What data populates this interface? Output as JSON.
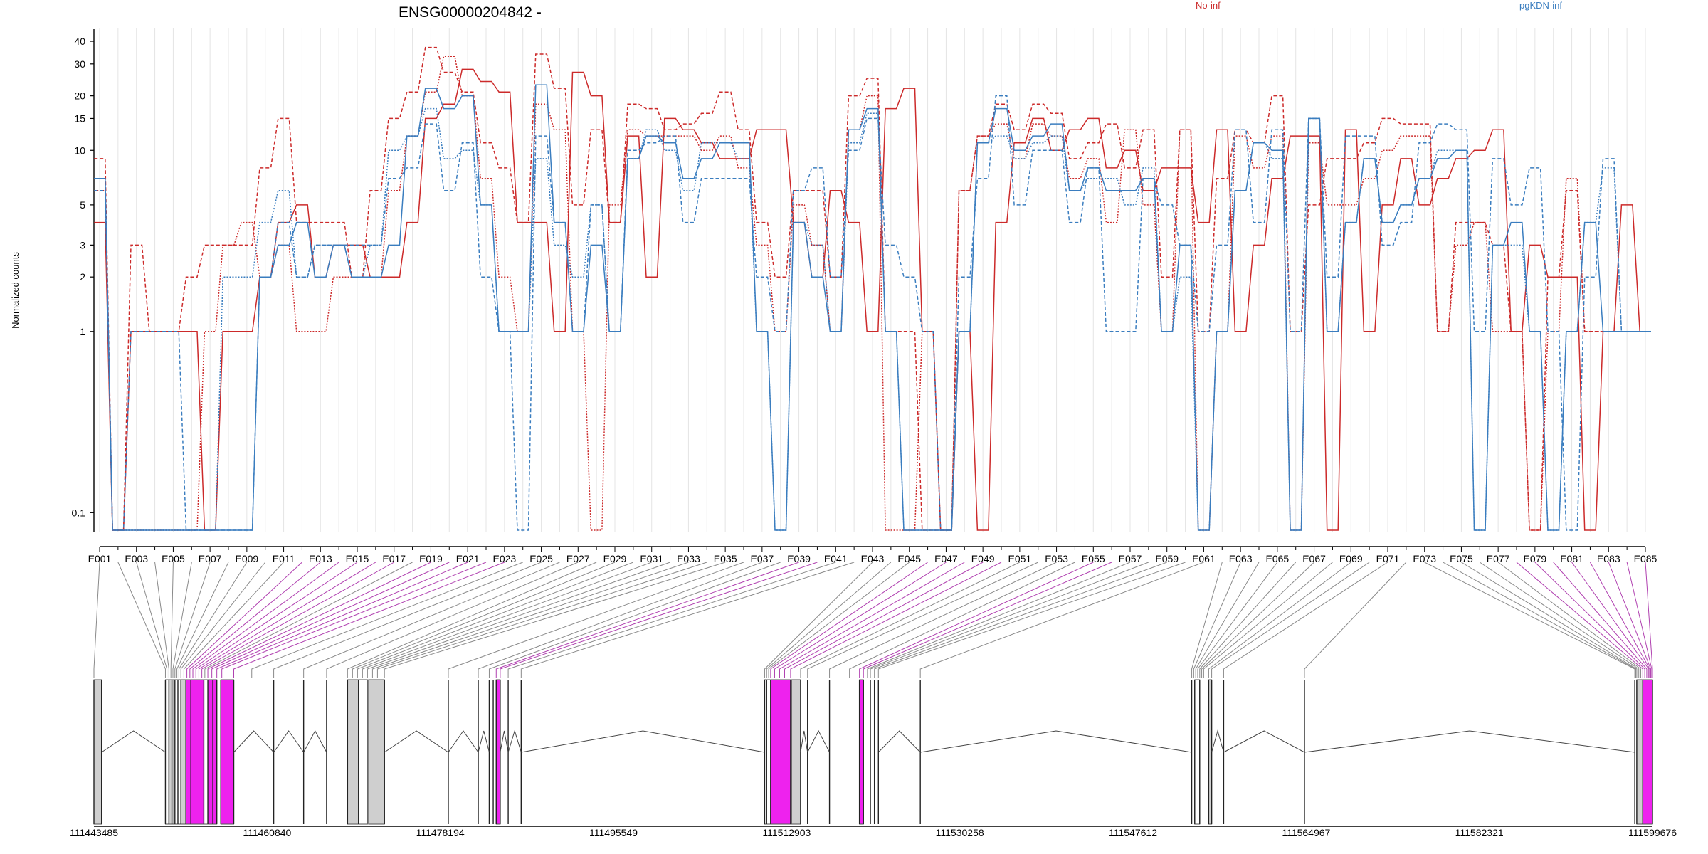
{
  "chart_data": {
    "type": "line",
    "title": "ENSG00000204842 -",
    "ylabel": "Normalized counts",
    "y_scale": "log",
    "ylim": [
      0.08,
      45
    ],
    "y_ticks": [
      "40",
      "30",
      "20",
      "15",
      "10",
      "5",
      "3",
      "2",
      "1",
      "0.1"
    ],
    "y_tick_values": [
      40,
      30,
      20,
      15,
      10,
      5,
      3,
      2,
      1,
      0.1
    ],
    "x_tick_labels": [
      "E001",
      "E003",
      "E005",
      "E007",
      "E009",
      "E011",
      "E013",
      "E015",
      "E017",
      "E019",
      "E021",
      "E023",
      "E025",
      "E027",
      "E029",
      "E031",
      "E033",
      "E035",
      "E037",
      "E039",
      "E041",
      "E043",
      "E045",
      "E047",
      "E049",
      "E051",
      "E053",
      "E055",
      "E057",
      "E059",
      "E061",
      "E063",
      "E065",
      "E067",
      "E069",
      "E071",
      "E073",
      "E075",
      "E077",
      "E079",
      "E081",
      "E083",
      "E085"
    ],
    "n_exons": 85,
    "legend": [
      {
        "label": "No-inf",
        "color": "#cc2a2a"
      },
      {
        "label": "pgKDN-inf",
        "color": "#3a7dbf"
      }
    ],
    "series": [
      {
        "group": "No-inf",
        "style": "solid",
        "color": "#cc2a2a",
        "values": [
          4.0,
          0.08,
          1.0,
          1.0,
          1.0,
          1.0,
          0.08,
          1.0,
          1.0,
          2.0,
          4.0,
          5.0,
          2.0,
          3.0,
          3.0,
          2.0,
          2.0,
          4.0,
          15.0,
          18.0,
          28.0,
          24.0,
          21.0,
          4.0,
          4.0,
          1.0,
          27.0,
          20.0,
          4.0,
          12.0,
          2.0,
          15.0,
          13.0,
          11.0,
          9.0,
          9.0,
          13.0,
          13.0,
          4.0,
          2.0,
          6.0,
          4.0,
          1.0,
          17.0,
          22.0,
          1.0,
          0.08,
          1.0,
          0.08,
          4.0,
          11.0,
          15.0,
          10.0,
          13.0,
          15.0,
          8.0,
          10.0,
          6.0,
          8.0,
          8.0,
          4.0,
          13.0,
          1.0,
          3.0,
          7.0,
          12.0,
          12.0,
          0.08,
          13.0,
          1.0,
          5.0,
          9.0,
          5.0,
          7.0,
          9.0,
          10.0,
          13.0,
          1.0,
          3.0,
          2.0,
          2.0,
          0.08,
          1.0,
          5.0,
          1.0
        ]
      },
      {
        "group": "No-inf",
        "style": "dashed",
        "color": "#cc2a2a",
        "values": [
          9.0,
          0.08,
          3.0,
          1.0,
          1.0,
          2.0,
          3.0,
          3.0,
          3.0,
          8.0,
          15.0,
          4.0,
          4.0,
          4.0,
          2.0,
          6.0,
          15.0,
          21.0,
          37.0,
          27.0,
          21.0,
          11.0,
          8.0,
          4.0,
          34.0,
          22.0,
          5.0,
          13.0,
          4.0,
          18.0,
          17.0,
          13.0,
          14.0,
          16.0,
          21.0,
          13.0,
          4.0,
          2.0,
          6.0,
          6.0,
          2.0,
          20.0,
          25.0,
          1.0,
          1.0,
          0.08,
          0.08,
          6.0,
          12.0,
          18.0,
          13.0,
          18.0,
          16.0,
          9.0,
          11.0,
          14.0,
          8.0,
          13.0,
          2.0,
          13.0,
          1.0,
          7.0,
          13.0,
          11.0,
          20.0,
          1.0,
          5.0,
          9.0,
          9.0,
          11.0,
          15.0,
          14.0,
          14.0,
          1.0,
          4.0,
          4.0,
          3.0,
          1.0,
          0.08,
          2.0,
          6.0,
          1.0,
          1.0,
          1.0,
          1.0
        ]
      },
      {
        "group": "No-inf",
        "style": "dotted",
        "color": "#cc2a2a",
        "values": [
          6.0,
          0.08,
          0.08,
          0.08,
          0.08,
          0.08,
          1.0,
          3.0,
          4.0,
          2.0,
          3.0,
          1.0,
          1.0,
          2.0,
          2.0,
          2.0,
          6.0,
          12.0,
          21.0,
          33.0,
          20.0,
          7.0,
          2.0,
          1.0,
          18.0,
          13.0,
          1.0,
          0.08,
          5.0,
          13.0,
          12.0,
          12.0,
          12.0,
          10.0,
          12.0,
          8.0,
          3.0,
          1.0,
          5.0,
          3.0,
          1.0,
          13.0,
          20.0,
          0.08,
          0.08,
          1.0,
          0.08,
          6.0,
          12.0,
          14.0,
          9.0,
          14.0,
          12.0,
          7.0,
          9.0,
          4.0,
          13.0,
          5.0,
          1.0,
          13.0,
          0.08,
          1.0,
          12.0,
          8.0,
          12.0,
          0.08,
          11.0,
          5.0,
          5.0,
          7.0,
          10.0,
          12.0,
          12.0,
          1.0,
          3.0,
          4.0,
          1.0,
          1.0,
          0.08,
          1.0,
          7.0,
          1.0,
          1.0,
          1.0,
          1.0
        ]
      },
      {
        "group": "pgKDN-inf",
        "style": "solid",
        "color": "#3a7dbf",
        "values": [
          7.0,
          0.08,
          0.08,
          0.08,
          0.08,
          0.08,
          0.08,
          0.08,
          0.08,
          2.0,
          3.0,
          4.0,
          2.0,
          3.0,
          2.0,
          2.0,
          3.0,
          12.0,
          22.0,
          17.0,
          20.0,
          5.0,
          1.0,
          1.0,
          23.0,
          4.0,
          1.0,
          3.0,
          1.0,
          9.0,
          12.0,
          11.0,
          7.0,
          9.0,
          11.0,
          11.0,
          1.0,
          0.08,
          4.0,
          2.0,
          1.0,
          13.0,
          17.0,
          1.0,
          0.08,
          0.08,
          0.08,
          1.0,
          11.0,
          17.0,
          10.0,
          12.0,
          14.0,
          6.0,
          8.0,
          6.0,
          6.0,
          7.0,
          1.0,
          3.0,
          0.08,
          1.0,
          6.0,
          11.0,
          10.0,
          0.08,
          15.0,
          1.0,
          4.0,
          9.0,
          4.0,
          5.0,
          7.0,
          9.0,
          10.0,
          0.08,
          3.0,
          4.0,
          1.0,
          0.08,
          1.0,
          4.0,
          1.0,
          1.0,
          1.0
        ]
      },
      {
        "group": "pgKDN-inf",
        "style": "dashed",
        "color": "#3a7dbf",
        "values": [
          6.0,
          0.08,
          1.0,
          1.0,
          1.0,
          0.08,
          0.08,
          0.08,
          0.08,
          2.0,
          4.0,
          2.0,
          3.0,
          3.0,
          3.0,
          3.0,
          7.0,
          8.0,
          14.0,
          6.0,
          11.0,
          2.0,
          1.0,
          0.08,
          12.0,
          4.0,
          1.0,
          5.0,
          1.0,
          10.0,
          11.0,
          12.0,
          4.0,
          7.0,
          7.0,
          7.0,
          2.0,
          1.0,
          6.0,
          8.0,
          2.0,
          10.0,
          15.0,
          3.0,
          2.0,
          1.0,
          0.08,
          2.0,
          7.0,
          20.0,
          5.0,
          10.0,
          10.0,
          4.0,
          8.0,
          1.0,
          1.0,
          7.0,
          5.0,
          3.0,
          1.0,
          3.0,
          13.0,
          4.0,
          13.0,
          1.0,
          15.0,
          2.0,
          12.0,
          12.0,
          3.0,
          4.0,
          11.0,
          14.0,
          13.0,
          1.0,
          9.0,
          5.0,
          8.0,
          1.0,
          0.08,
          2.0,
          9.0,
          1.0,
          1.0
        ]
      },
      {
        "group": "pgKDN-inf",
        "style": "dotted",
        "color": "#3a7dbf",
        "values": [
          7.0,
          0.08,
          0.08,
          0.08,
          0.08,
          0.08,
          0.08,
          2.0,
          2.0,
          4.0,
          6.0,
          2.0,
          3.0,
          3.0,
          2.0,
          3.0,
          10.0,
          12.0,
          17.0,
          9.0,
          10.0,
          5.0,
          1.0,
          1.0,
          9.0,
          3.0,
          2.0,
          5.0,
          1.0,
          9.0,
          13.0,
          10.0,
          6.0,
          11.0,
          11.0,
          9.0,
          1.0,
          0.08,
          4.0,
          3.0,
          1.0,
          11.0,
          16.0,
          1.0,
          0.08,
          0.08,
          0.08,
          1.0,
          11.0,
          12.0,
          9.0,
          11.0,
          12.0,
          6.0,
          7.0,
          7.0,
          5.0,
          8.0,
          1.0,
          2.0,
          0.08,
          1.0,
          6.0,
          11.0,
          9.0,
          0.08,
          15.0,
          1.0,
          4.0,
          9.0,
          4.0,
          5.0,
          7.0,
          10.0,
          10.0,
          0.08,
          3.0,
          3.0,
          1.0,
          0.08,
          1.0,
          4.0,
          8.0,
          1.0,
          1.0
        ]
      }
    ],
    "gene_model": {
      "start_label": "111443485",
      "coordinate_ticks": [
        "111443485",
        "111460840",
        "111478194",
        "111495549",
        "111512903",
        "111530258",
        "111547612",
        "111564967",
        "111582321",
        "111599676"
      ],
      "coordinate_tick_values": [
        111443485,
        111460840,
        111478194,
        111495549,
        111512903,
        111530258,
        111547612,
        111564967,
        111582321,
        111599676
      ],
      "blocks": [
        {
          "start": 111443485,
          "end": 111444250,
          "fill": "gray"
        },
        {
          "start": 111450650,
          "end": 111451000,
          "fill": "white"
        },
        {
          "start": 111451000,
          "end": 111451500,
          "fill": "gray"
        },
        {
          "start": 111451500,
          "end": 111452200,
          "fill": "white"
        },
        {
          "start": 111452200,
          "end": 111452700,
          "fill": "gray"
        },
        {
          "start": 111452700,
          "end": 111454500,
          "fill": "magenta"
        },
        {
          "start": 111454500,
          "end": 111454900,
          "fill": "white"
        },
        {
          "start": 111454900,
          "end": 111455800,
          "fill": "magenta"
        },
        {
          "start": 111456200,
          "end": 111457500,
          "fill": "magenta"
        },
        {
          "start": 111468900,
          "end": 111470000,
          "fill": "gray"
        },
        {
          "start": 111470000,
          "end": 111470900,
          "fill": "white"
        },
        {
          "start": 111471000,
          "end": 111472600,
          "fill": "gray"
        },
        {
          "start": 111483800,
          "end": 111484200,
          "fill": "magenta"
        },
        {
          "start": 111510700,
          "end": 111511300,
          "fill": "white"
        },
        {
          "start": 111511300,
          "end": 111513300,
          "fill": "magenta"
        },
        {
          "start": 111513400,
          "end": 111514300,
          "fill": "gray"
        },
        {
          "start": 111520200,
          "end": 111520600,
          "fill": "magenta"
        },
        {
          "start": 111553800,
          "end": 111554300,
          "fill": "white"
        },
        {
          "start": 111555200,
          "end": 111555500,
          "fill": "gray"
        },
        {
          "start": 111598100,
          "end": 111598700,
          "fill": "gray"
        },
        {
          "start": 111598700,
          "end": 111599676,
          "fill": "magenta"
        }
      ],
      "exon_lines": [
        111443485,
        111444250,
        111450650,
        111451000,
        111451300,
        111451600,
        111451900,
        111452200,
        111452700,
        111453200,
        111454500,
        111454900,
        111455400,
        111455800,
        111456200,
        111457500,
        111461500,
        111464500,
        111466800,
        111468900,
        111470000,
        111472600,
        111479000,
        111482000,
        111483100,
        111483500,
        111483800,
        111484200,
        111485000,
        111486300,
        111510700,
        111510900,
        111511300,
        111513300,
        111514300,
        111515000,
        111517200,
        111520200,
        111520600,
        111521300,
        111521700,
        111522100,
        111526300,
        111553500,
        111553800,
        111554300,
        111555200,
        111555500,
        111556700,
        111564800,
        111597900,
        111598100,
        111598700,
        111599676
      ],
      "introns": [
        [
          111444250,
          111450650
        ],
        [
          111457500,
          111461500
        ],
        [
          111461500,
          111464500
        ],
        [
          111464500,
          111466800
        ],
        [
          111472600,
          111479000
        ],
        [
          111479000,
          111482000
        ],
        [
          111482000,
          111483100
        ],
        [
          111484200,
          111485000
        ],
        [
          111485000,
          111486300
        ],
        [
          111486300,
          111510700
        ],
        [
          111514300,
          111515000
        ],
        [
          111515000,
          111517200
        ],
        [
          111522100,
          111526300
        ],
        [
          111526300,
          111553500
        ],
        [
          111555500,
          111556700
        ],
        [
          111556700,
          111564800
        ],
        [
          111564800,
          111597900
        ]
      ],
      "exon_start_coords": [
        111443485,
        111450650,
        111450800,
        111451000,
        111451200,
        111451400,
        111451600,
        111451800,
        111452000,
        111452200,
        111452500,
        111452800,
        111453100,
        111453400,
        111453700,
        111454000,
        111454300,
        111454600,
        111454900,
        111455300,
        111455800,
        111456300,
        111457500,
        111459300,
        111461500,
        111464500,
        111466800,
        111468900,
        111469400,
        111469900,
        111470400,
        111470900,
        111471400,
        111471900,
        111472600,
        111479000,
        111482000,
        111483100,
        111483800,
        111484200,
        111485000,
        111486300,
        111510700,
        111510900,
        111511100,
        111511300,
        111511700,
        111512200,
        111512700,
        111513300,
        111514300,
        111515000,
        111517200,
        111519200,
        111520200,
        111520600,
        111521000,
        111521300,
        111521700,
        111522100,
        111526300,
        111553500,
        111553700,
        111553900,
        111554100,
        111554300,
        111554500,
        111554700,
        111555200,
        111555500,
        111556700,
        111564800,
        111597900,
        111598000,
        111598100,
        111598300,
        111598500,
        111598700,
        111598900,
        111599100,
        111599300,
        111599400,
        111599500,
        111599600,
        111599676
      ]
    }
  }
}
